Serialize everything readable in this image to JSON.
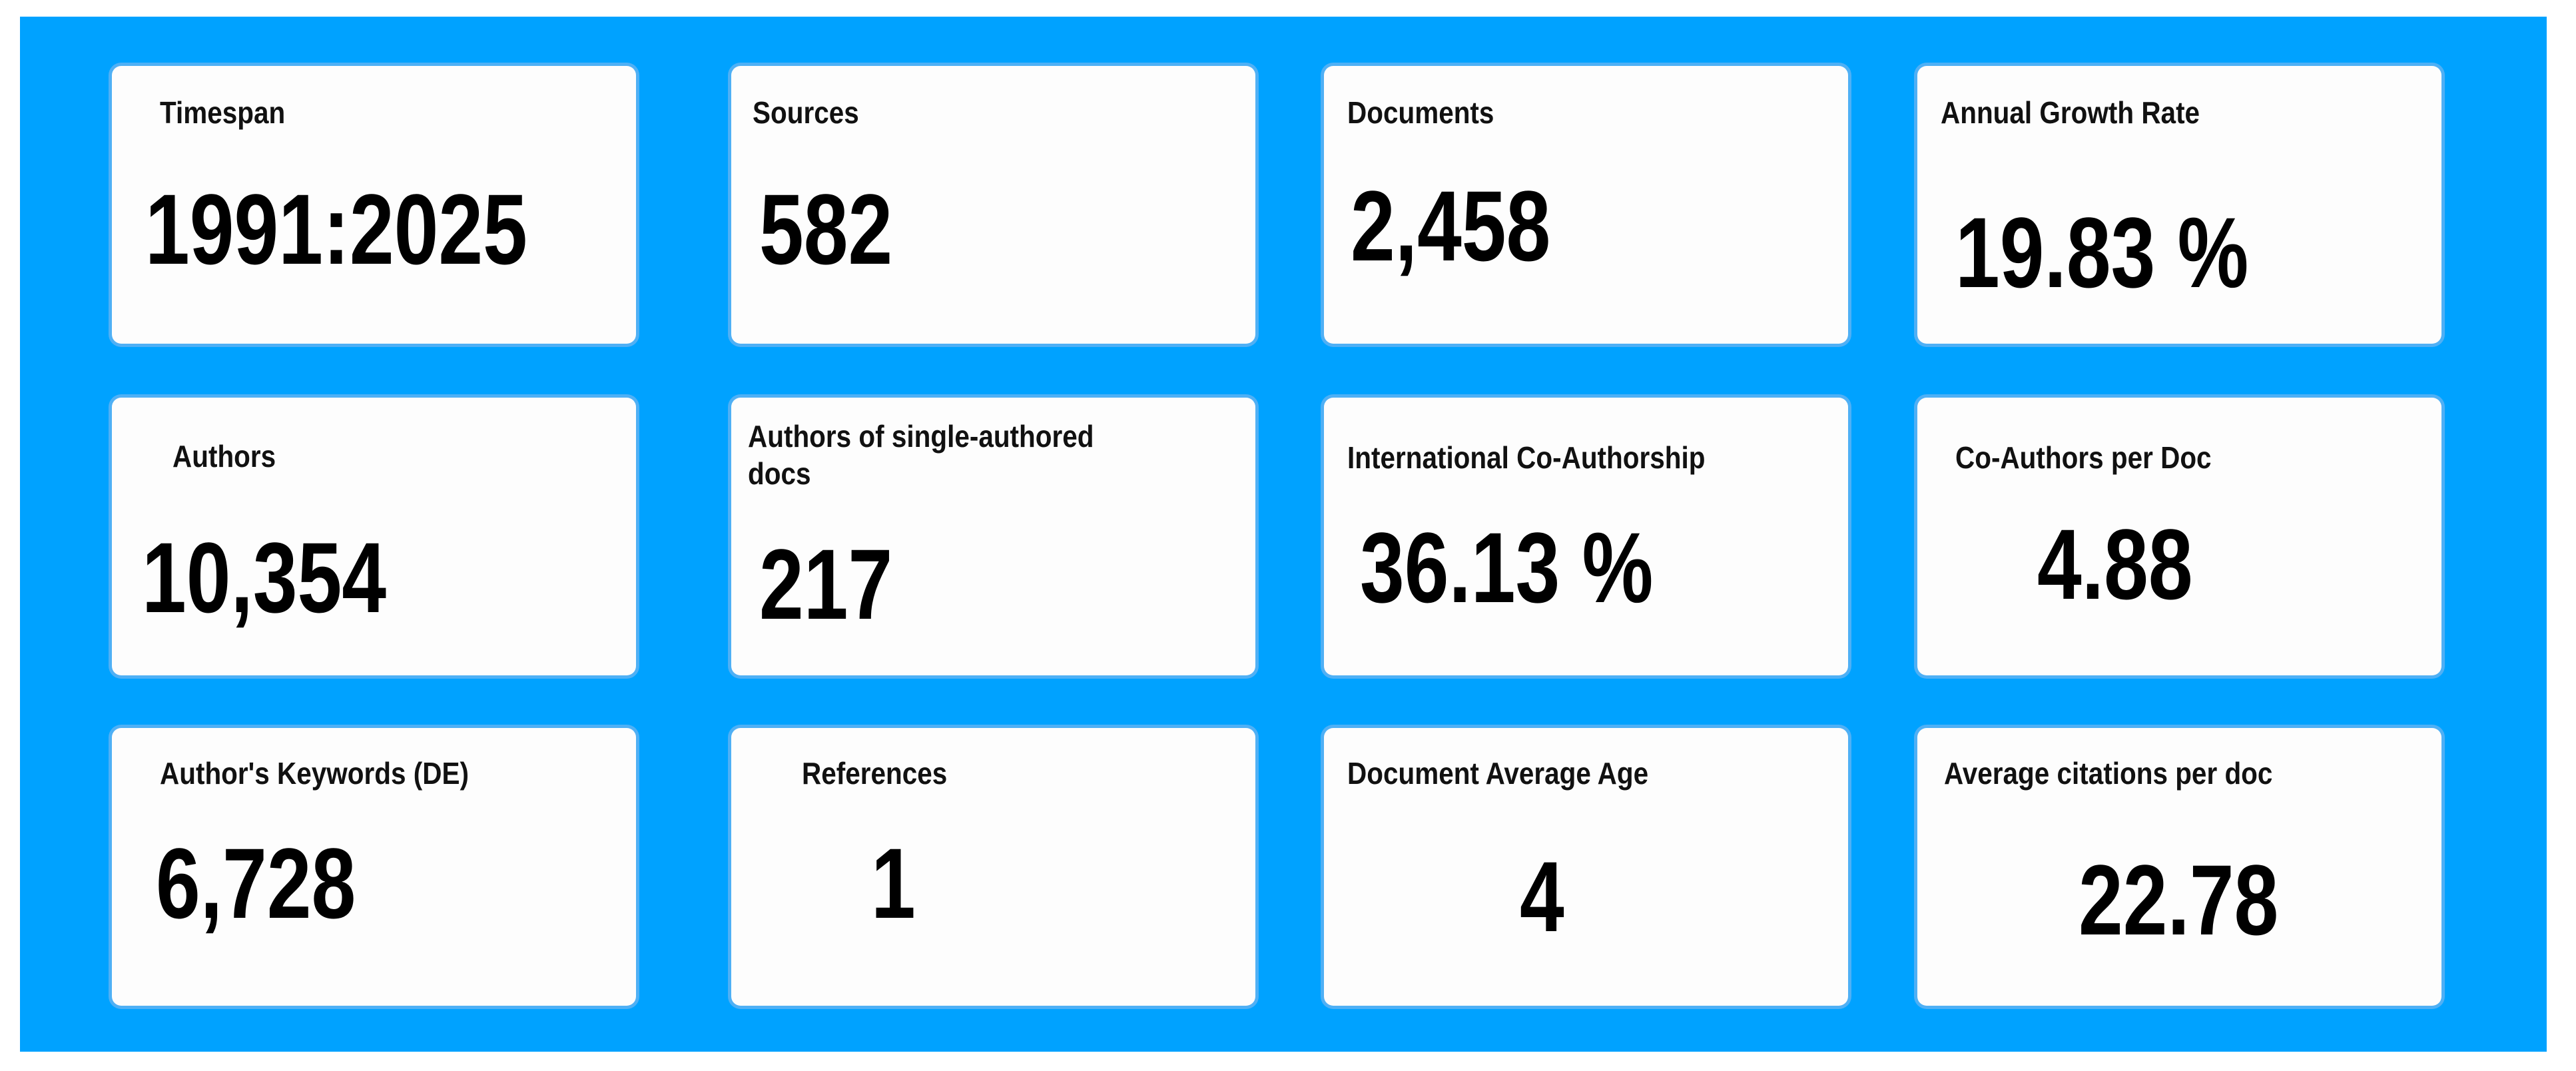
{
  "colors": {
    "panel": "#00a2ff",
    "card": "#fdfdfd",
    "text": "#000000"
  },
  "metrics": [
    {
      "label": "Timespan",
      "value": "1991:2025"
    },
    {
      "label": "Sources",
      "value": "582"
    },
    {
      "label": "Documents",
      "value": "2,458"
    },
    {
      "label": "Annual Growth Rate",
      "value": "19.83 %"
    },
    {
      "label": "Authors",
      "value": "10,354"
    },
    {
      "label": "Authors of single-authored docs",
      "value": "217"
    },
    {
      "label": "International Co-Authorship",
      "value": "36.13 %"
    },
    {
      "label": "Co-Authors per Doc",
      "value": "4.88"
    },
    {
      "label": "Author's Keywords (DE)",
      "value": "6,728"
    },
    {
      "label": "References",
      "value": "1"
    },
    {
      "label": "Document Average Age",
      "value": "4"
    },
    {
      "label": "Average citations per doc",
      "value": "22.78"
    }
  ]
}
